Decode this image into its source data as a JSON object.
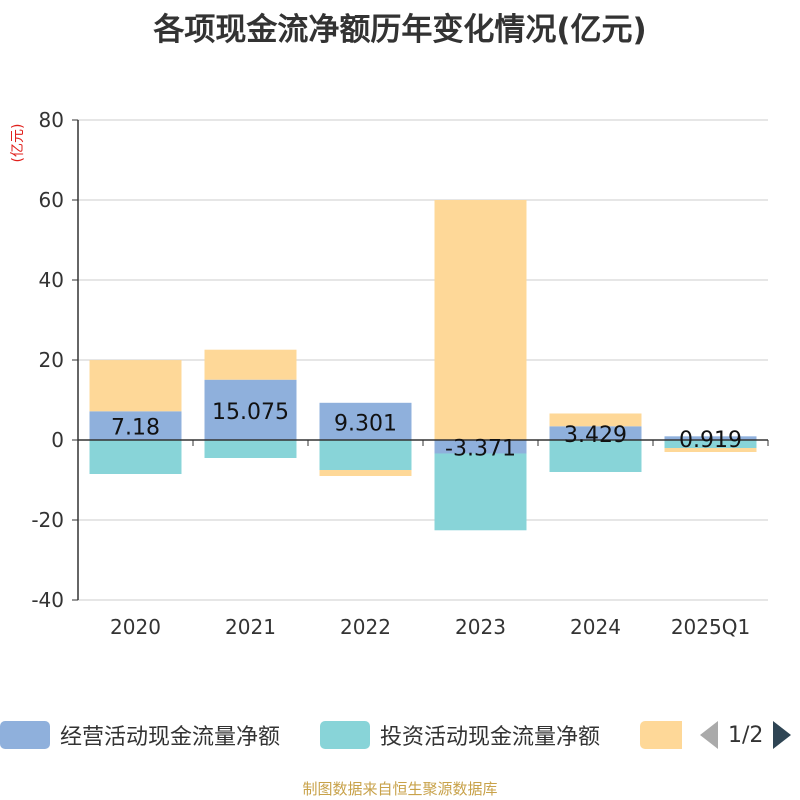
{
  "title": "各项现金流净额历年变化情况(亿元)",
  "unit": "(亿元)",
  "source": "制图数据来自恒生聚源数据库",
  "legend": {
    "items": [
      {
        "label": "经营活动现金流量净额",
        "color": "#8fb0dc"
      },
      {
        "label": "投资活动现金流量净额",
        "color": "#88d4d8"
      },
      {
        "label": "",
        "color": "#fed898"
      }
    ],
    "page_indicator": "1/2"
  },
  "chart_data": {
    "type": "bar",
    "stacked": true,
    "categories": [
      "2020",
      "2021",
      "2022",
      "2023",
      "2024",
      "2025Q1"
    ],
    "ylim": [
      -40,
      80
    ],
    "yticks": [
      -40,
      -20,
      0,
      20,
      40,
      60,
      80
    ],
    "ylabel": "(亿元)",
    "grid": true,
    "legend_position": "bottom",
    "series": [
      {
        "name": "经营活动现金流量净额",
        "color": "#8fb0dc",
        "values": [
          7.18,
          15.075,
          9.301,
          -3.371,
          3.429,
          0.919
        ],
        "labels": [
          "7.18",
          "15.075",
          "9.301",
          "-3.371",
          "3.429",
          "0.919"
        ]
      },
      {
        "name": "投资活动现金流量净额",
        "color": "#88d4d8",
        "values": [
          -8.5,
          -4.5,
          -7.5,
          -19.2,
          -8.0,
          -2.0
        ]
      },
      {
        "color": "#fed898",
        "values": [
          12.8,
          7.5,
          -1.5,
          60.0,
          3.2,
          -1.0
        ]
      }
    ]
  }
}
